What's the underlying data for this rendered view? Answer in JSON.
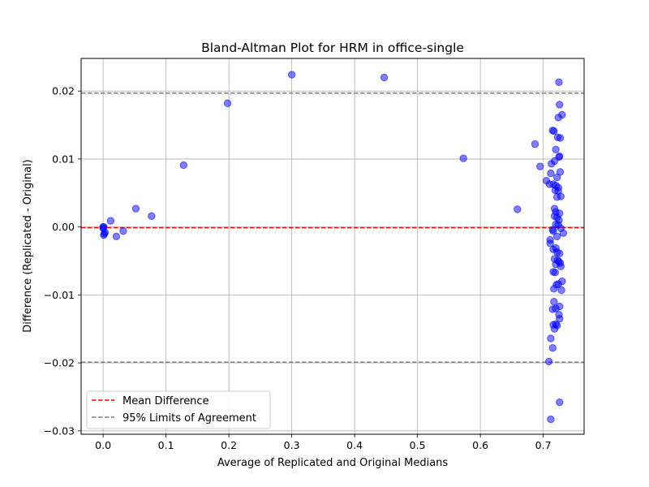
{
  "chart_data": {
    "type": "scatter",
    "title": "Bland-Altman Plot for HRM in office-single",
    "xlabel": "Average of Replicated and Original Medians",
    "ylabel": "Difference (Replicated - Original)",
    "xlim": [
      -0.035,
      0.765
    ],
    "ylim": [
      -0.0305,
      0.0248
    ],
    "xticks": [
      0.0,
      0.1,
      0.2,
      0.3,
      0.4,
      0.5,
      0.6,
      0.7
    ],
    "xtick_labels": [
      "0.0",
      "0.1",
      "0.2",
      "0.3",
      "0.4",
      "0.5",
      "0.6",
      "0.7"
    ],
    "yticks": [
      -0.03,
      -0.02,
      -0.01,
      0.0,
      0.01,
      0.02
    ],
    "ytick_labels": [
      "−0.03",
      "−0.02",
      "−0.01",
      "0.00",
      "0.01",
      "0.02"
    ],
    "grid": true,
    "legend_position": "lower-left",
    "point_color": "#0000ff",
    "mean_difference": -0.0001,
    "limits_of_agreement": [
      -0.0199,
      0.0197
    ],
    "lines": [
      {
        "name": "Mean Difference",
        "color": "#ff0000",
        "style": "dashed"
      },
      {
        "name": "95% Limits of Agreement",
        "color": "#808080",
        "style": "dashed"
      }
    ],
    "points": [
      [
        0.0,
        0.0
      ],
      [
        0.0,
        -0.0002
      ],
      [
        0.001,
        0.0
      ],
      [
        0.002,
        -0.001
      ],
      [
        0.001,
        -0.0012
      ],
      [
        0.003,
        -0.0008
      ],
      [
        0.012,
        0.0009
      ],
      [
        0.021,
        -0.0014
      ],
      [
        0.032,
        -0.0006
      ],
      [
        0.052,
        0.0027
      ],
      [
        0.077,
        0.0016
      ],
      [
        0.128,
        0.0091
      ],
      [
        0.198,
        0.0182
      ],
      [
        0.3,
        0.0224
      ],
      [
        0.447,
        0.022
      ],
      [
        0.573,
        0.0101
      ],
      [
        0.659,
        0.0026
      ],
      [
        0.687,
        0.0122
      ],
      [
        0.695,
        0.0089
      ],
      [
        0.725,
        0.0213
      ],
      [
        0.726,
        0.018
      ],
      [
        0.73,
        0.0165
      ],
      [
        0.724,
        0.0161
      ],
      [
        0.715,
        0.0142
      ],
      [
        0.717,
        0.0141
      ],
      [
        0.723,
        0.0132
      ],
      [
        0.727,
        0.0131
      ],
      [
        0.72,
        0.0114
      ],
      [
        0.726,
        0.0104
      ],
      [
        0.725,
        0.0103
      ],
      [
        0.718,
        0.0097
      ],
      [
        0.713,
        0.0093
      ],
      [
        0.712,
        0.0079
      ],
      [
        0.727,
        0.0081
      ],
      [
        0.722,
        0.0073
      ],
      [
        0.705,
        0.0068
      ],
      [
        0.71,
        0.0063
      ],
      [
        0.716,
        0.0063
      ],
      [
        0.72,
        0.0061
      ],
      [
        0.724,
        0.0058
      ],
      [
        0.719,
        0.0054
      ],
      [
        0.724,
        0.0053
      ],
      [
        0.728,
        0.0045
      ],
      [
        0.722,
        0.0044
      ],
      [
        0.718,
        0.0027
      ],
      [
        0.72,
        0.0022
      ],
      [
        0.726,
        0.002
      ],
      [
        0.718,
        0.0016
      ],
      [
        0.722,
        0.0014
      ],
      [
        0.725,
        0.001
      ],
      [
        0.72,
        0.0004
      ],
      [
        0.724,
        0.0003
      ],
      [
        0.728,
        -0.0002
      ],
      [
        0.715,
        -0.0004
      ],
      [
        0.716,
        -0.0006
      ],
      [
        0.732,
        -0.0009
      ],
      [
        0.722,
        -0.0014
      ],
      [
        0.711,
        -0.0019
      ],
      [
        0.711,
        -0.0024
      ],
      [
        0.716,
        -0.0033
      ],
      [
        0.72,
        -0.0031
      ],
      [
        0.722,
        -0.0037
      ],
      [
        0.726,
        -0.0039
      ],
      [
        0.718,
        -0.0047
      ],
      [
        0.723,
        -0.0049
      ],
      [
        0.725,
        -0.0051
      ],
      [
        0.727,
        -0.0053
      ],
      [
        0.72,
        -0.0055
      ],
      [
        0.728,
        -0.0058
      ],
      [
        0.716,
        -0.0066
      ],
      [
        0.719,
        -0.0067
      ],
      [
        0.73,
        -0.008
      ],
      [
        0.724,
        -0.0084
      ],
      [
        0.721,
        -0.0085
      ],
      [
        0.717,
        -0.0091
      ],
      [
        0.729,
        -0.0093
      ],
      [
        0.717,
        -0.011
      ],
      [
        0.726,
        -0.0117
      ],
      [
        0.715,
        -0.0121
      ],
      [
        0.72,
        -0.012
      ],
      [
        0.725,
        -0.0129
      ],
      [
        0.726,
        -0.0135
      ],
      [
        0.72,
        -0.0143
      ],
      [
        0.716,
        -0.0144
      ],
      [
        0.722,
        -0.0145
      ],
      [
        0.718,
        -0.015
      ],
      [
        0.712,
        -0.0164
      ],
      [
        0.715,
        -0.0178
      ],
      [
        0.709,
        -0.0198
      ],
      [
        0.726,
        -0.0258
      ],
      [
        0.712,
        -0.0283
      ]
    ]
  },
  "legend": {
    "mean_label": "Mean Difference",
    "loa_label": "95% Limits of Agreement"
  }
}
